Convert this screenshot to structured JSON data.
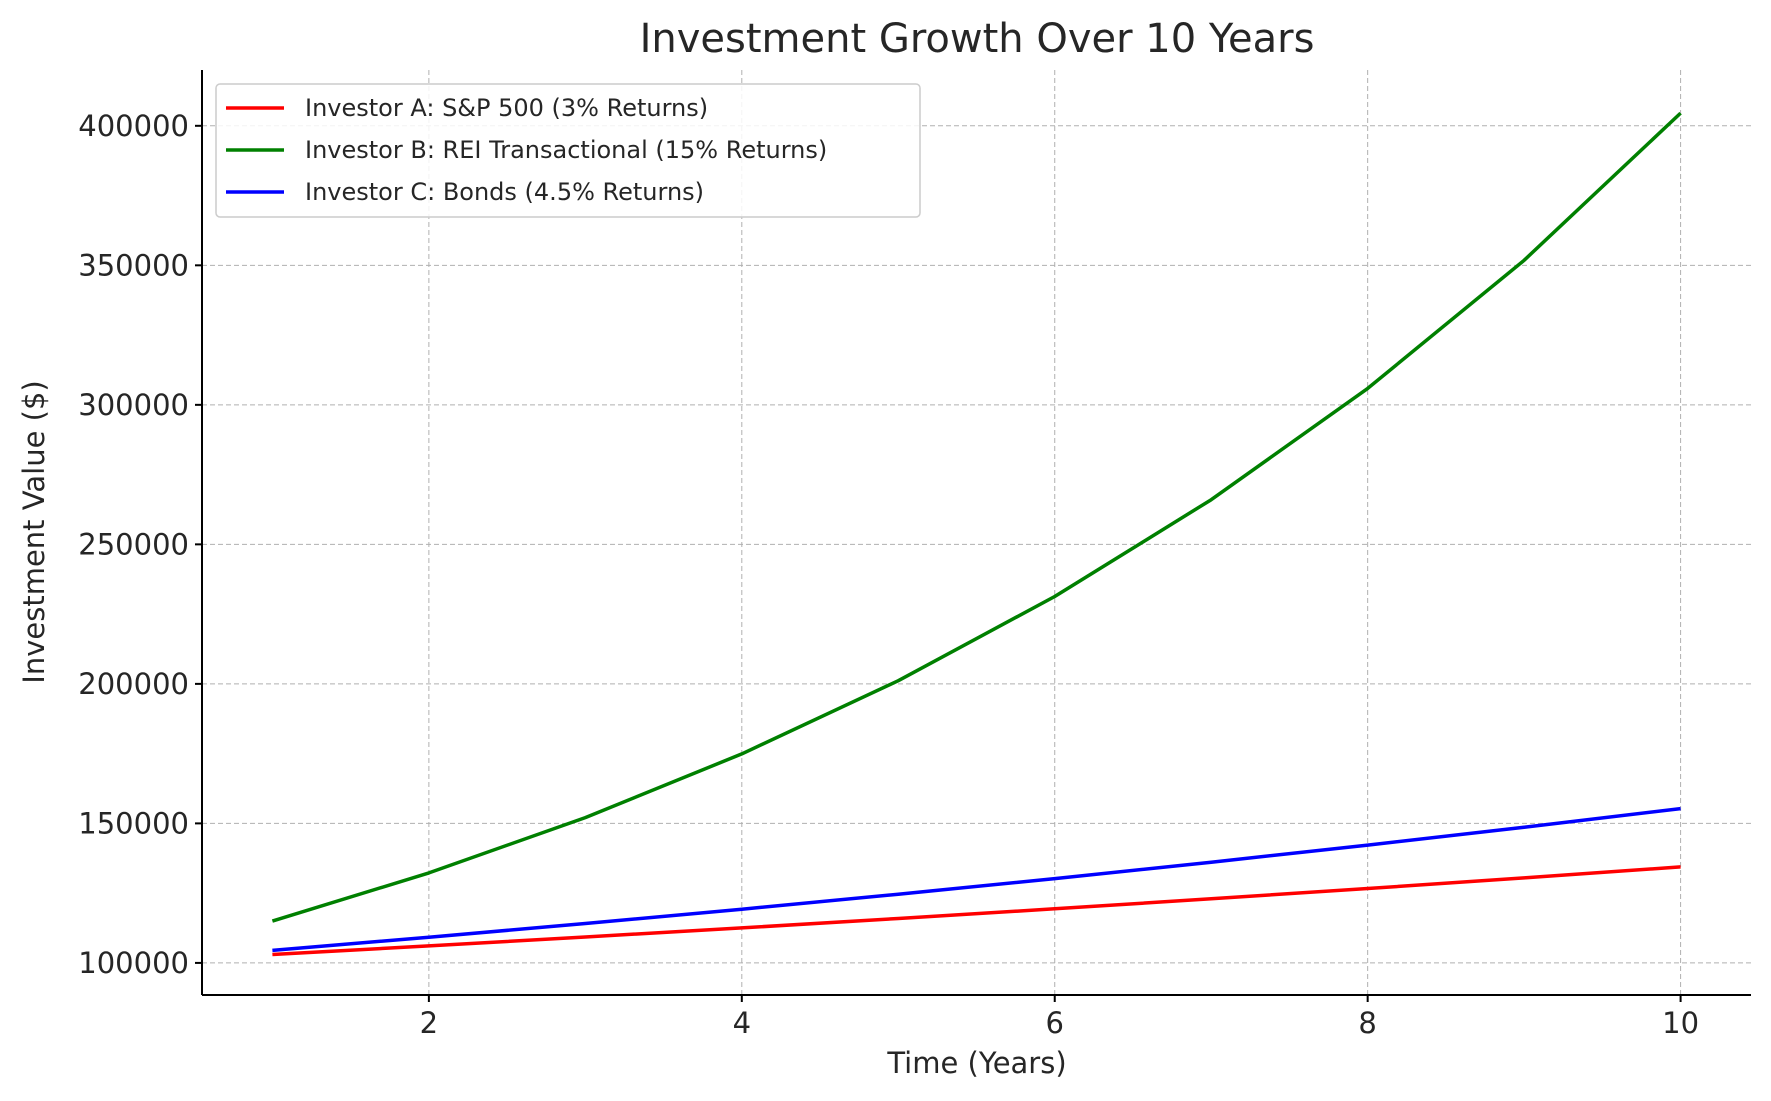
{
  "chart_data": {
    "type": "line",
    "title": "Investment Growth Over 10 Years",
    "xlabel": "Time (Years)",
    "ylabel": "Investment Value ($)",
    "x": [
      1,
      2,
      3,
      4,
      5,
      6,
      7,
      8,
      9,
      10
    ],
    "xlim": [
      0.55,
      10.45
    ],
    "ylim": [
      88500,
      420000
    ],
    "xticks": [
      2,
      4,
      6,
      8,
      10
    ],
    "yticks": [
      100000,
      150000,
      200000,
      250000,
      300000,
      350000,
      400000
    ],
    "grid": true,
    "legend_position": "upper-left",
    "series": [
      {
        "name": "Investor A: S&P 500 (3% Returns)",
        "color": "#ff0000",
        "values": [
          103000,
          106090,
          109273,
          112551,
          115927,
          119405,
          122987,
          126677,
          130477,
          134392
        ]
      },
      {
        "name": "Investor B: REI Transactional (15% Returns)",
        "color": "#008000",
        "values": [
          115000,
          132250,
          152088,
          174901,
          201136,
          231306,
          266002,
          305902,
          351788,
          404556
        ]
      },
      {
        "name": "Investor C: Bonds (4.5% Returns)",
        "color": "#0000ff",
        "values": [
          104500,
          109203,
          114117,
          119252,
          124618,
          130226,
          136086,
          142210,
          148610,
          155297
        ]
      }
    ]
  }
}
